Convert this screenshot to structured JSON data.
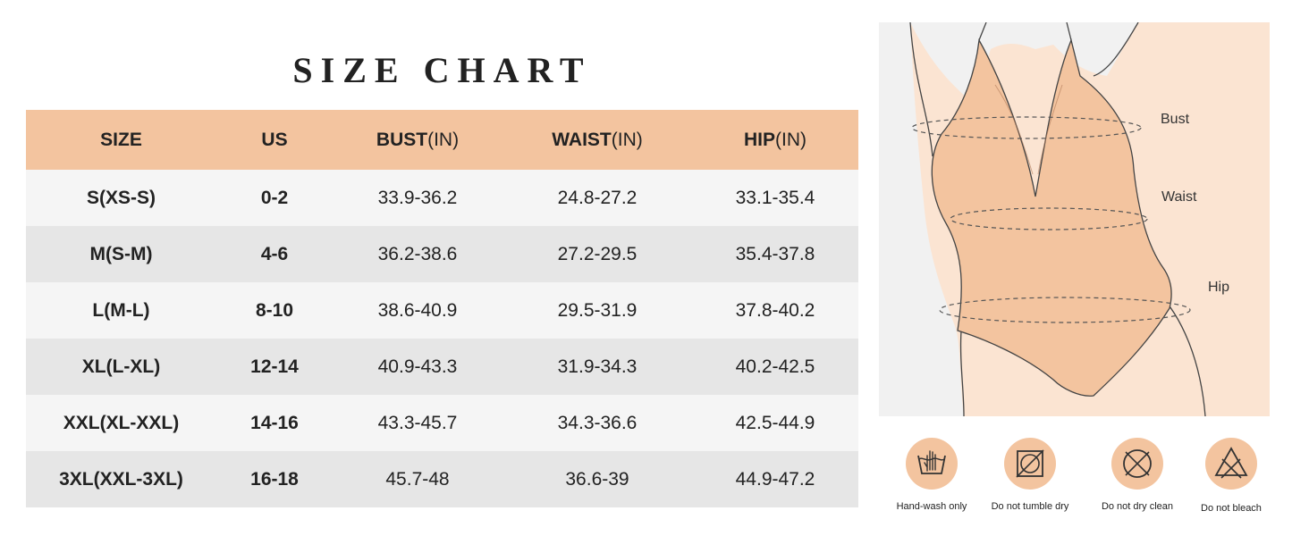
{
  "title": "SIZE CHART",
  "table": {
    "headers": [
      {
        "name": "SIZE",
        "unit": ""
      },
      {
        "name": "US",
        "unit": ""
      },
      {
        "name": "BUST",
        "unit": "(IN)"
      },
      {
        "name": "WAIST",
        "unit": "(IN)"
      },
      {
        "name": "HIP",
        "unit": "(IN)"
      }
    ],
    "rows": [
      [
        "S(XS-S)",
        "0-2",
        "33.9-36.2",
        "24.8-27.2",
        "33.1-35.4"
      ],
      [
        "M(S-M)",
        "4-6",
        "36.2-38.6",
        "27.2-29.5",
        "35.4-37.8"
      ],
      [
        "L(M-L)",
        "8-10",
        "38.6-40.9",
        "29.5-31.9",
        "37.8-40.2"
      ],
      [
        "XL(L-XL)",
        "12-14",
        "40.9-43.3",
        "31.9-34.3",
        "40.2-42.5"
      ],
      [
        "XXL(XL-XXL)",
        "14-16",
        "43.3-45.7",
        "34.3-36.6",
        "42.5-44.9"
      ],
      [
        "3XL(XXL-3XL)",
        "16-18",
        "45.7-48",
        "36.6-39",
        "44.9-47.2"
      ]
    ]
  },
  "figure": {
    "labels": {
      "bust": "Bust",
      "waist": "Waist",
      "hip": "Hip"
    },
    "colors": {
      "garment": "#f3c49f",
      "skin": "#fbe4d2",
      "background": "#f1f1f1"
    }
  },
  "care": [
    {
      "icon": "hand-wash-icon",
      "label": "Hand-wash only"
    },
    {
      "icon": "no-tumble-dry-icon",
      "label": "Do not tumble dry"
    },
    {
      "icon": "no-dry-clean-icon",
      "label": "Do not dry clean"
    },
    {
      "icon": "no-bleach-icon",
      "label": "Do not bleach"
    }
  ],
  "colors": {
    "accent": "#f3c49f",
    "row_light": "#f5f5f5",
    "row_dark": "#e6e6e6",
    "text": "#222222"
  }
}
